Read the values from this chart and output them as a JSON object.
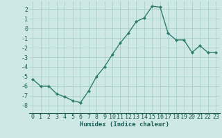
{
  "x": [
    0,
    1,
    2,
    3,
    4,
    5,
    6,
    7,
    8,
    9,
    10,
    11,
    12,
    13,
    14,
    15,
    16,
    17,
    18,
    19,
    20,
    21,
    22,
    23
  ],
  "y": [
    -5.3,
    -6.0,
    -6.0,
    -6.8,
    -7.1,
    -7.5,
    -7.7,
    -6.5,
    -5.0,
    -4.0,
    -2.7,
    -1.5,
    -0.5,
    0.7,
    1.1,
    2.3,
    2.2,
    -0.5,
    -1.2,
    -1.2,
    -2.5,
    -1.8,
    -2.5,
    -2.5
  ],
  "line_color": "#2e7d6e",
  "marker": "D",
  "marker_size": 2.2,
  "line_width": 1.0,
  "background_color": "#cde8e5",
  "grid_color": "#aacfcc",
  "xlabel": "Humidex (Indice chaleur)",
  "xlabel_color": "#1a5c52",
  "xlabel_fontsize": 6.5,
  "tick_color": "#1a5c52",
  "tick_fontsize": 6,
  "xlim": [
    -0.5,
    23.5
  ],
  "ylim": [
    -8.8,
    2.8
  ],
  "yticks": [
    -8,
    -7,
    -6,
    -5,
    -4,
    -3,
    -2,
    -1,
    0,
    1,
    2
  ],
  "xticks": [
    0,
    1,
    2,
    3,
    4,
    5,
    6,
    7,
    8,
    9,
    10,
    11,
    12,
    13,
    14,
    15,
    16,
    17,
    18,
    19,
    20,
    21,
    22,
    23
  ]
}
